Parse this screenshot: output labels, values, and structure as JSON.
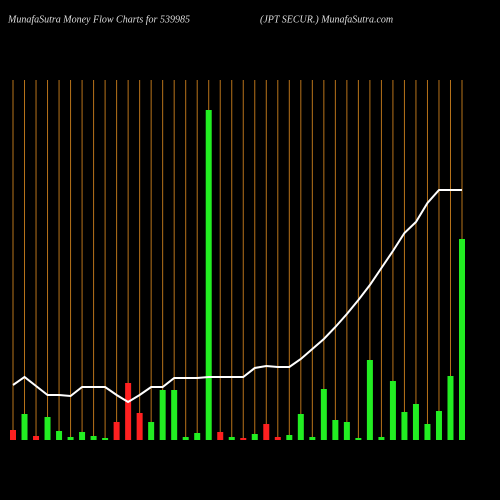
{
  "chart_data": {
    "type": "bar",
    "title": "MunafaSutra  Money Flow  Charts for 539985",
    "subtitle": "(JPT SECUR.) MunafaSutra.com",
    "categories": [
      null,
      null,
      null,
      null,
      null,
      null,
      null,
      null,
      null,
      null,
      null,
      null,
      null,
      null,
      null,
      null,
      null,
      null,
      null,
      null,
      null,
      null,
      null,
      null,
      null,
      null,
      null,
      null,
      null,
      null,
      null,
      null,
      null,
      null,
      null,
      null,
      null,
      null,
      null,
      null
    ],
    "ylim": [
      0,
      340
    ],
    "grid": true,
    "grid_color": "#b8731a",
    "series": [
      {
        "type": "bar",
        "colors": [
          "#ff2020",
          "#22ee22",
          "#ff2020",
          "#22ee22",
          "#22ee22",
          "#22ee22",
          "#22ee22",
          "#22ee22",
          "#22ee22",
          "#ff2020",
          "#ff2020",
          "#ff2020",
          "#22ee22",
          "#22ee22",
          "#22ee22",
          "#22ee22",
          "#22ee22",
          "#22ee22",
          "#ff2020",
          "#22ee22",
          "#ff2020",
          "#22ee22",
          "#ff2020",
          "#ff2020",
          "#22ee22",
          "#22ee22",
          "#22ee22",
          "#22ee22",
          "#22ee22",
          "#22ee22",
          "#22ee22",
          "#22ee22",
          "#22ee22",
          "#22ee22",
          "#22ee22",
          "#22ee22",
          "#22ee22",
          "#22ee22",
          "#22ee22",
          "#22ee22"
        ],
        "values": [
          10,
          26,
          4,
          23,
          9,
          3,
          8,
          4,
          2,
          18,
          57,
          27,
          18,
          50,
          50,
          3,
          7,
          330,
          8,
          3,
          2,
          6,
          16,
          3,
          5,
          26,
          3,
          51,
          20,
          18,
          2,
          80,
          3,
          59,
          28,
          36,
          16,
          29,
          64,
          201
        ]
      },
      {
        "type": "line",
        "color": "#ffffff",
        "values": [
          55,
          63,
          54,
          45,
          45,
          44,
          53,
          53,
          53,
          45,
          38,
          45,
          53,
          53,
          62,
          62,
          62,
          63,
          63,
          63,
          63,
          72,
          74,
          73,
          73,
          81,
          91,
          101,
          113,
          126,
          140,
          155,
          172,
          189,
          207,
          218,
          237,
          250,
          250,
          250
        ]
      }
    ]
  }
}
